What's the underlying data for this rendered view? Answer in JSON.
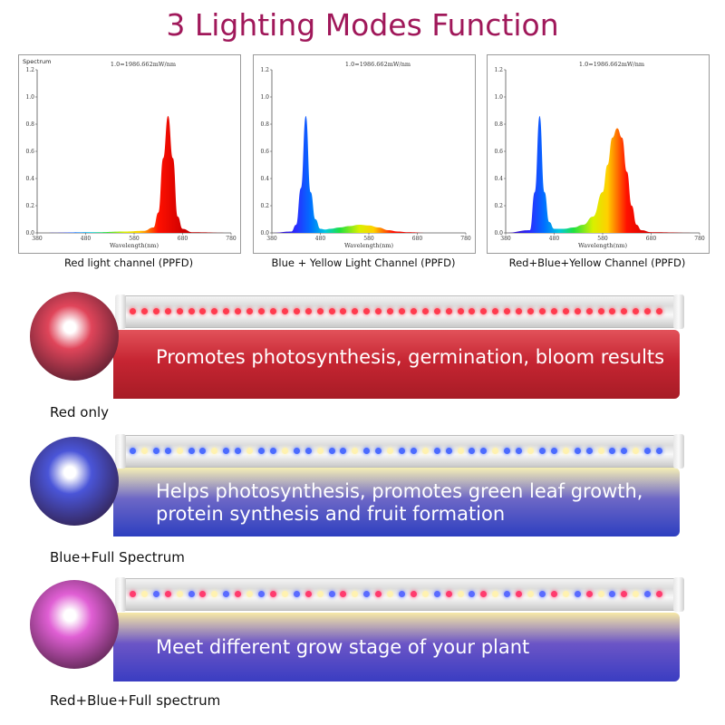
{
  "title": "3 Lighting Modes Function",
  "chart_data": [
    {
      "type": "area",
      "corner_label": "Spectrum",
      "note": "1.0=1986.662mW/nm",
      "xlabel": "Wavelength(nm)",
      "xlim": [
        380,
        780
      ],
      "ylim": [
        0,
        1.2
      ],
      "xticks": [
        380,
        480,
        580,
        680,
        780
      ],
      "yticks": [
        0.0,
        0.2,
        0.4,
        0.6,
        0.8,
        1.0,
        1.2
      ],
      "x": [
        380,
        500,
        560,
        600,
        620,
        630,
        640,
        650,
        660,
        670,
        680,
        700,
        780
      ],
      "y": [
        0.0,
        0.005,
        0.01,
        0.015,
        0.04,
        0.15,
        0.55,
        0.86,
        0.55,
        0.12,
        0.03,
        0.005,
        0.0
      ],
      "caption": "Red light channel (PPFD)"
    },
    {
      "type": "area",
      "corner_label": "",
      "note": "1.0=1986.662mW/nm",
      "xlabel": "Wavelength(nm)",
      "xlim": [
        380,
        780
      ],
      "ylim": [
        0,
        1.2
      ],
      "xticks": [
        380,
        480,
        580,
        680,
        780
      ],
      "yticks": [
        0.0,
        0.2,
        0.4,
        0.6,
        0.8,
        1.0,
        1.2
      ],
      "x": [
        380,
        420,
        430,
        440,
        450,
        460,
        470,
        480,
        490,
        500,
        520,
        540,
        560,
        580,
        600,
        620,
        640,
        660,
        700,
        780
      ],
      "y": [
        0.0,
        0.01,
        0.06,
        0.33,
        0.86,
        0.3,
        0.1,
        0.03,
        0.025,
        0.03,
        0.04,
        0.05,
        0.06,
        0.055,
        0.04,
        0.02,
        0.01,
        0.005,
        0.0,
        0.0
      ],
      "caption": "Blue + Yellow Light Channel (PPFD)"
    },
    {
      "type": "area",
      "corner_label": "",
      "note": "1.0=1986.662mW/nm",
      "xlabel": "Wavelength(nm)",
      "xlim": [
        380,
        780
      ],
      "ylim": [
        0,
        1.2
      ],
      "xticks": [
        380,
        480,
        580,
        680,
        780
      ],
      "yticks": [
        0.0,
        0.2,
        0.4,
        0.6,
        0.8,
        1.0,
        1.2
      ],
      "x": [
        380,
        430,
        440,
        450,
        460,
        470,
        480,
        500,
        520,
        540,
        560,
        580,
        590,
        600,
        610,
        620,
        630,
        640,
        650,
        660,
        680,
        780
      ],
      "y": [
        0.0,
        0.02,
        0.3,
        0.86,
        0.3,
        0.08,
        0.03,
        0.03,
        0.04,
        0.06,
        0.12,
        0.3,
        0.5,
        0.7,
        0.77,
        0.7,
        0.45,
        0.2,
        0.06,
        0.02,
        0.005,
        0.0
      ],
      "caption": "Red+Blue+Yellow Channel (PPFD)"
    }
  ],
  "modes": [
    {
      "label": "Red only",
      "lines": [
        "Promotes photosynthesis, germination, bloom results",
        ""
      ],
      "band_colors": [
        "#e2525a",
        "#c62532",
        "#a71c26"
      ],
      "plant_color": "#e0455a",
      "led_pattern": [
        "#ff3b4e",
        "#ff3b4e",
        "#ff3b4e"
      ]
    },
    {
      "label": "Blue+Full Spectrum",
      "lines": [
        "Helps photosynthesis, promotes green leaf growth,",
        "protein synthesis and fruit formation"
      ],
      "band_colors": [
        "#f5efb5",
        "#6d67c6",
        "#2d3fc0"
      ],
      "plant_color": "#4a55d8",
      "led_pattern": [
        "#4b6bff",
        "#fff2b0",
        "#4b6bff"
      ]
    },
    {
      "label": "Red+Blue+Full spectrum",
      "lines": [
        "Meet different grow stage of your plant",
        ""
      ],
      "band_colors": [
        "#f7e9a6",
        "#6b55c6",
        "#3a3dc2"
      ],
      "plant_color": "#e05fd4",
      "led_pattern": [
        "#ff3b6e",
        "#fff2b0",
        "#5a6bff"
      ]
    }
  ]
}
